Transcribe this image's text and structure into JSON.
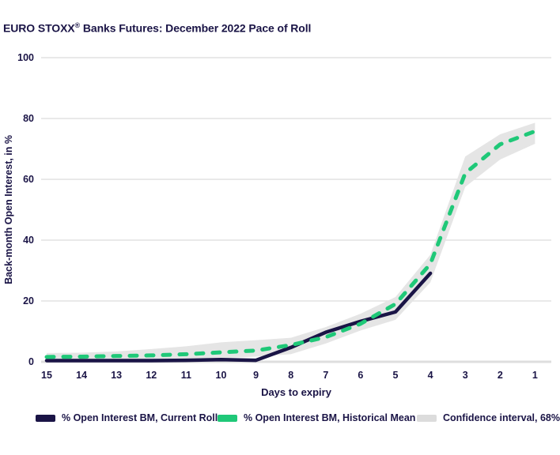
{
  "title": {
    "pre": "EURO STOXX",
    "sup": "®",
    "post": " Banks Futures: December 2022 Pace of Roll"
  },
  "axes": {
    "y_label": "Back-month Open Interest, in %",
    "x_label": "Days to expiry"
  },
  "legend": {
    "items": [
      {
        "key": "current-roll",
        "label": "% Open Interest BM, Current Roll",
        "color": "#1A1446"
      },
      {
        "key": "historical-mean",
        "label": "% Open Interest BM, Historical Mean",
        "color": "#1FC878"
      },
      {
        "key": "confidence-interval",
        "label": "Confidence interval, 68%",
        "color": "#DCDCDC"
      }
    ]
  },
  "colors": {
    "text_navy": "#1A1446",
    "line_navy": "#1A1446",
    "line_green": "#1FC878",
    "band_gray": "#E5E5E5",
    "gridline": "#E2E2E2",
    "zero_line": "#DEDEDE"
  },
  "chart_data": {
    "type": "line",
    "title": "EURO STOXX® Banks Futures: December 2022 Pace of Roll",
    "xlabel": "Days to expiry",
    "ylabel": "Back-month Open Interest, in %",
    "x_axis_reversed": true,
    "categories": [
      "15",
      "14",
      "13",
      "12",
      "11",
      "10",
      "9",
      "8",
      "7",
      "6",
      "5",
      "4",
      "3",
      "2",
      "1"
    ],
    "yticks": [
      0,
      20,
      40,
      60,
      80,
      100
    ],
    "ylim": [
      0,
      100
    ],
    "grid": "horizontal",
    "legend_position": "bottom",
    "series": [
      {
        "name": "% Open Interest BM, Current Roll",
        "style": "solid",
        "color": "#1A1446",
        "values": [
          0.4,
          0.4,
          0.4,
          0.4,
          0.5,
          0.7,
          0.5,
          4.7,
          9.7,
          13.3,
          16.4,
          29.1,
          null,
          null,
          null
        ]
      },
      {
        "name": "% Open Interest BM, Historical Mean",
        "style": "dashed",
        "color": "#1FC878",
        "values": [
          1.6,
          1.7,
          1.9,
          2.1,
          2.5,
          3.1,
          3.7,
          5.5,
          8.1,
          12.5,
          19.0,
          32.2,
          62.0,
          71.5,
          75.8
        ]
      },
      {
        "name": "Confidence interval, 68%",
        "style": "band",
        "color": "#E5E5E5",
        "upper": [
          2.9,
          3.0,
          3.4,
          4.2,
          5.1,
          6.4,
          7.1,
          7.9,
          11.4,
          15.8,
          21.3,
          35.2,
          67.5,
          74.8,
          78.6
        ],
        "lower": [
          0.3,
          0.3,
          0.4,
          0.6,
          0.9,
          1.2,
          1.7,
          2.5,
          6.0,
          10.3,
          13.8,
          26.1,
          57.5,
          66.5,
          71.7
        ]
      }
    ]
  }
}
